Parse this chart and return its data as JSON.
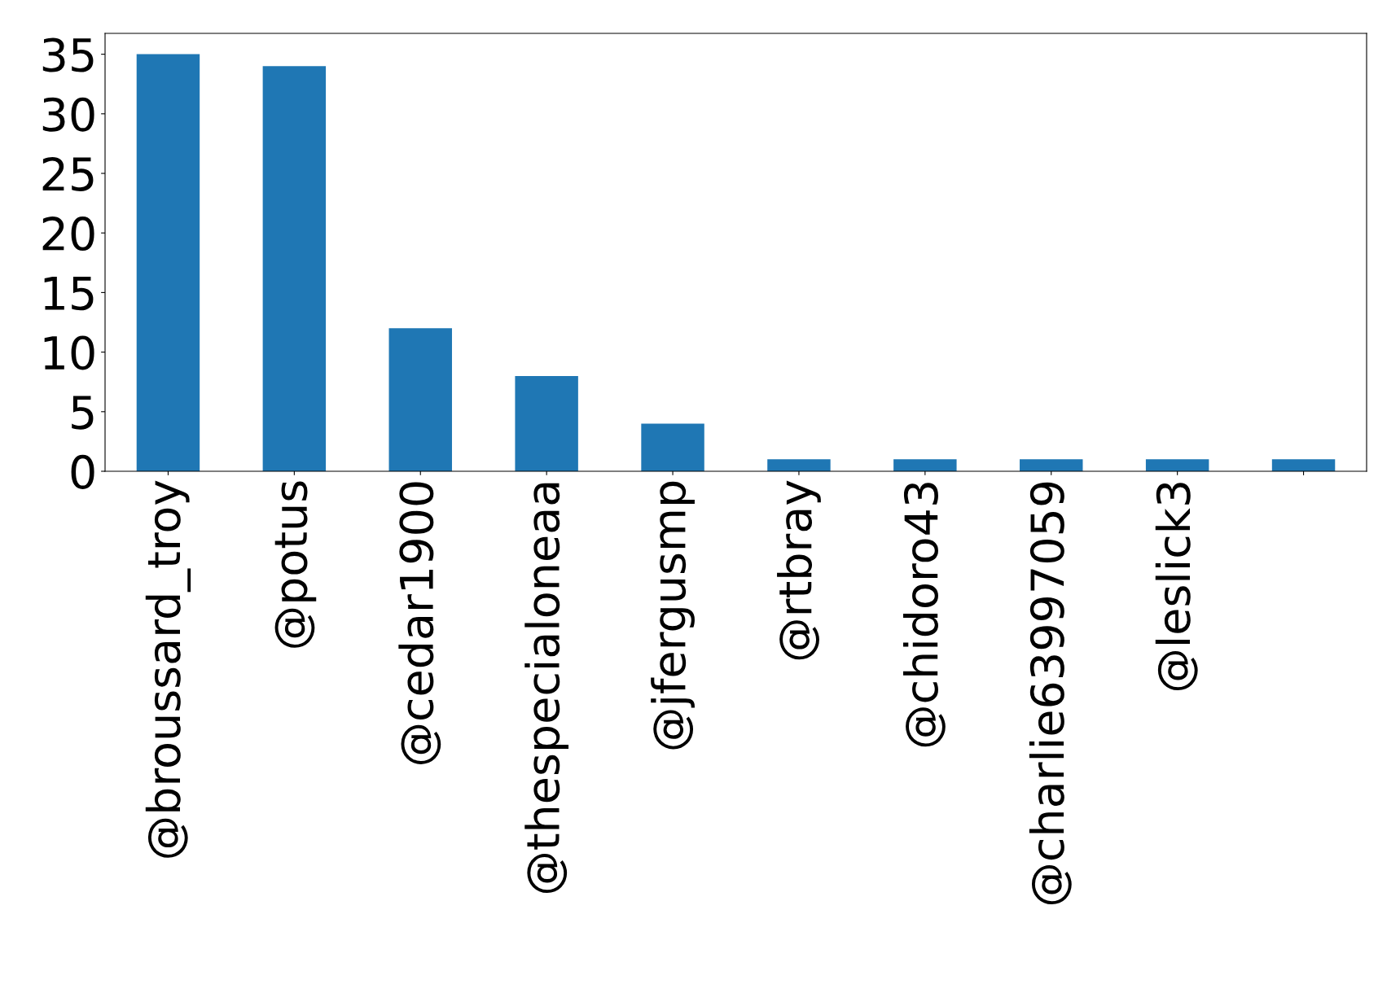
{
  "chart_data": {
    "type": "bar",
    "categories": [
      "@broussard_troy",
      "@potus",
      "@cedar1900",
      "@thespecialoneaa",
      "@jfergusmp",
      "@rtbray",
      "@chidoro43",
      "@charlie63997059",
      "@leslick3",
      null
    ],
    "values": [
      35,
      34,
      12,
      8,
      4,
      1,
      1,
      1,
      1,
      1
    ],
    "color": "#1f77b4",
    "ylim": [
      0,
      36.75
    ],
    "yticks": [
      0,
      5,
      10,
      15,
      20,
      25,
      30,
      35
    ],
    "grid": false,
    "legend": false
  }
}
